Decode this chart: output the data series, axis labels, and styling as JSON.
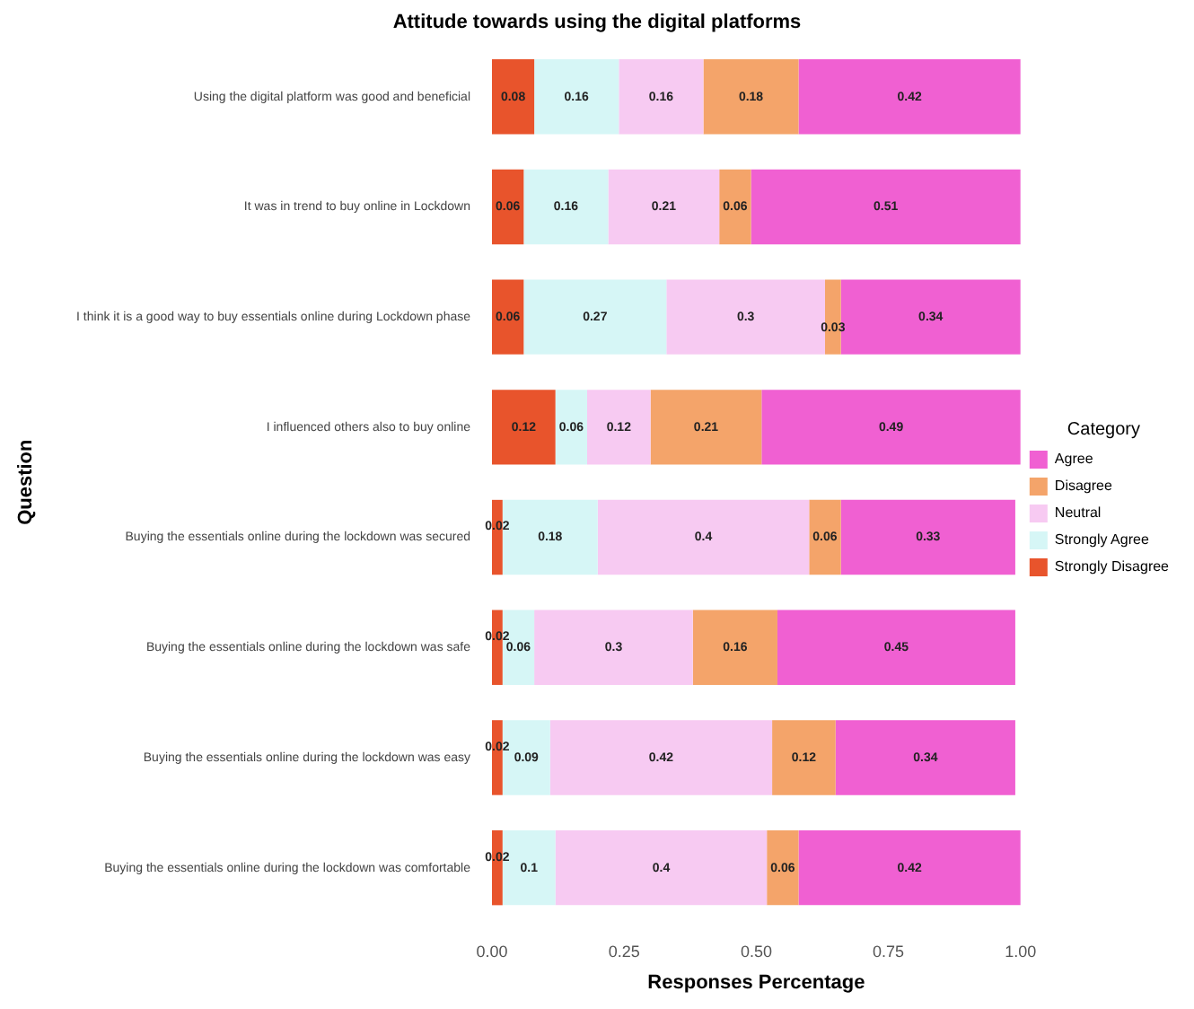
{
  "chart_data": {
    "type": "bar",
    "orientation": "horizontal",
    "stacked": true,
    "title": "Attitude towards using the digital platforms",
    "xlabel": "Responses Percentage",
    "ylabel": "Question",
    "legend_title": "Category",
    "legend": "right",
    "data_labels": true,
    "grid": false,
    "categories": [
      "Using the digital platform was good and beneficial",
      "It was in trend to buy online in Lockdown",
      "I think it is a good way to buy essentials online during Lockdown phase",
      "I influenced others also to buy online",
      "Buying the essentials online during the lockdown was secured",
      "Buying the essentials online during the lockdown was safe",
      "Buying the essentials online during the lockdown was easy",
      "Buying the essentials online during the lockdown was comfortable"
    ],
    "xlim": [
      0,
      1
    ],
    "xticks": [
      {
        "value": 0,
        "label": "0.00"
      },
      {
        "value": 0.25,
        "label": "0.25"
      },
      {
        "value": 0.5,
        "label": "0.50"
      },
      {
        "value": 0.75,
        "label": "0.75"
      },
      {
        "value": 1,
        "label": "1.00"
      }
    ],
    "series": [
      {
        "name": "Strongly Disagree",
        "color": "#e8542c",
        "values": [
          0.08,
          0.06,
          0.06,
          0.12,
          0.02,
          0.02,
          0.02,
          0.02
        ]
      },
      {
        "name": "Strongly Agree",
        "color": "#d6f6f6",
        "values": [
          0.16,
          0.16,
          0.27,
          0.06,
          0.18,
          0.06,
          0.09,
          0.1
        ]
      },
      {
        "name": "Neutral",
        "color": "#f7caf2",
        "values": [
          0.16,
          0.21,
          0.3,
          0.12,
          0.4,
          0.3,
          0.42,
          0.4
        ]
      },
      {
        "name": "Disagree",
        "color": "#f4a46a",
        "values": [
          0.18,
          0.06,
          0.03,
          0.21,
          0.06,
          0.16,
          0.12,
          0.06
        ]
      },
      {
        "name": "Agree",
        "color": "#f060d2",
        "values": [
          0.42,
          0.51,
          0.34,
          0.49,
          0.33,
          0.45,
          0.34,
          0.42
        ]
      }
    ]
  }
}
